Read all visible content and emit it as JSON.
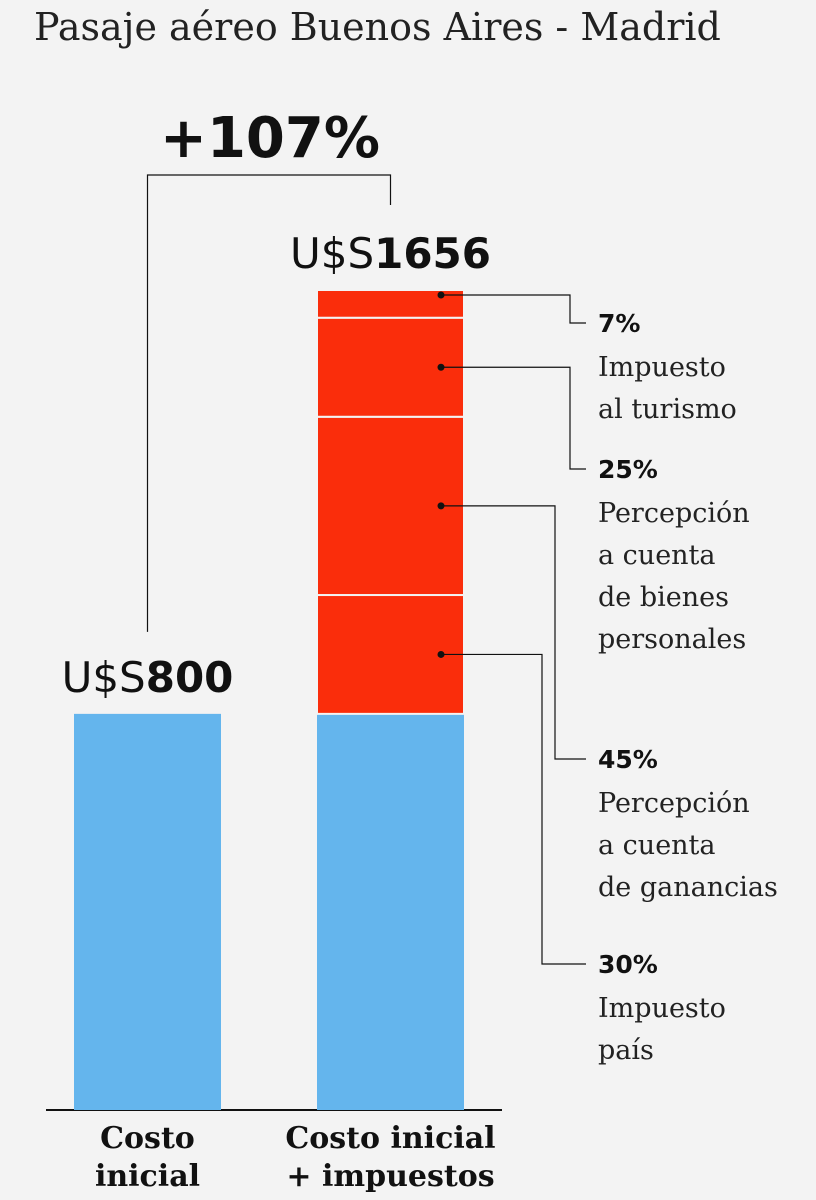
{
  "chart_data": {
    "type": "bar",
    "title": "Pasaje aéreo Buenos Aires - Madrid",
    "annotation": "+107%",
    "currency_prefix": "U$S",
    "categories": [
      "Costo inicial",
      "Costo inicial + impuestos"
    ],
    "category_lines": [
      [
        "Costo",
        "inicial"
      ],
      [
        "Costo inicial",
        "+ impuestos"
      ]
    ],
    "bars": [
      {
        "category": "Costo inicial",
        "total": 800,
        "total_label": "800",
        "segments": [
          {
            "name": "Costo inicial",
            "value": 800
          }
        ]
      },
      {
        "category": "Costo inicial + impuestos",
        "total": 1656,
        "total_label": "1656",
        "segments": [
          {
            "name": "Costo inicial",
            "value": 800
          },
          {
            "name": "Impuesto país",
            "pct": "30%",
            "value": 240
          },
          {
            "name": "Percepción a cuenta de ganancias",
            "pct": "45%",
            "value": 360
          },
          {
            "name": "Percepción a cuenta de bienes personales",
            "pct": "25%",
            "value": 200
          },
          {
            "name": "Impuesto al turismo",
            "pct": "7%",
            "value": 56
          }
        ]
      }
    ],
    "ylim": [
      0,
      1656
    ],
    "grid": false,
    "legend": "right, callouts",
    "callouts": [
      {
        "pct": "7%",
        "lines": [
          "Impuesto",
          "al turismo"
        ]
      },
      {
        "pct": "25%",
        "lines": [
          "Percepción",
          "a cuenta",
          "de bienes",
          "personales"
        ]
      },
      {
        "pct": "45%",
        "lines": [
          "Percepción",
          "a cuenta",
          "de ganancias"
        ]
      },
      {
        "pct": "30%",
        "lines": [
          "Impuesto",
          "país"
        ]
      }
    ],
    "colors": {
      "base": "#64b5ed",
      "tax": "#fa2d0b",
      "background": "#f3f3f3",
      "text": "#111111"
    }
  }
}
